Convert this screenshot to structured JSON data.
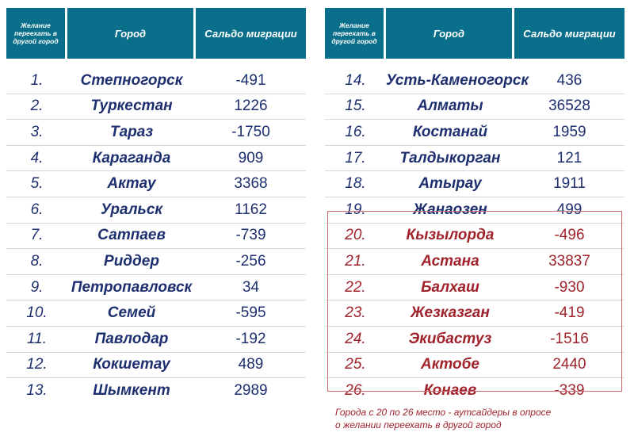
{
  "header": {
    "rank": "Желание переехать в другой город",
    "city": "Город",
    "balance": "Сальдо миграции"
  },
  "left_rows": [
    {
      "rank": "1.",
      "city": "Степногорск",
      "balance": "-491"
    },
    {
      "rank": "2.",
      "city": "Туркестан",
      "balance": "1226"
    },
    {
      "rank": "3.",
      "city": "Тараз",
      "balance": "-1750"
    },
    {
      "rank": "4.",
      "city": "Караганда",
      "balance": "909"
    },
    {
      "rank": "5.",
      "city": "Актау",
      "balance": "3368"
    },
    {
      "rank": "6.",
      "city": "Уральск",
      "balance": "1162"
    },
    {
      "rank": "7.",
      "city": "Сатпаев",
      "balance": "-739"
    },
    {
      "rank": "8.",
      "city": "Риддер",
      "balance": "-256"
    },
    {
      "rank": "9.",
      "city": "Петропавловск",
      "balance": "34"
    },
    {
      "rank": "10.",
      "city": "Семей",
      "balance": "-595"
    },
    {
      "rank": "11.",
      "city": "Павлодар",
      "balance": "-192"
    },
    {
      "rank": "12.",
      "city": "Кокшетау",
      "balance": "489"
    },
    {
      "rank": "13.",
      "city": "Шымкент",
      "balance": "2989"
    }
  ],
  "right_rows": [
    {
      "rank": "14.",
      "city": "Усть-Каменогорск",
      "balance": "436"
    },
    {
      "rank": "15.",
      "city": "Алматы",
      "balance": "36528"
    },
    {
      "rank": "16.",
      "city": "Костанай",
      "balance": "1959"
    },
    {
      "rank": "17.",
      "city": "Талдыкорган",
      "balance": "121"
    },
    {
      "rank": "18.",
      "city": "Атырау",
      "balance": "1911"
    },
    {
      "rank": "19.",
      "city": "Жанаозен",
      "balance": "499"
    },
    {
      "rank": "20.",
      "city": "Кызылорда",
      "balance": "-496"
    },
    {
      "rank": "21.",
      "city": "Астана",
      "balance": "33837"
    },
    {
      "rank": "22.",
      "city": "Балхаш",
      "balance": "-930"
    },
    {
      "rank": "23.",
      "city": "Жезказган",
      "balance": "-419"
    },
    {
      "rank": "24.",
      "city": "Экибастуз",
      "balance": "-1516"
    },
    {
      "rank": "25.",
      "city": "Актобе",
      "balance": "2440"
    },
    {
      "rank": "26.",
      "city": "Конаев",
      "balance": "-339"
    }
  ],
  "note": {
    "line1": "Города с 20 по 26 место - аутсайдеры в опросе",
    "line2": "о желании переехать в другой город"
  },
  "colors": {
    "header_bg": "#0a6f8a",
    "text_blue": "#1d2f6f",
    "text_red": "#a0232c"
  }
}
